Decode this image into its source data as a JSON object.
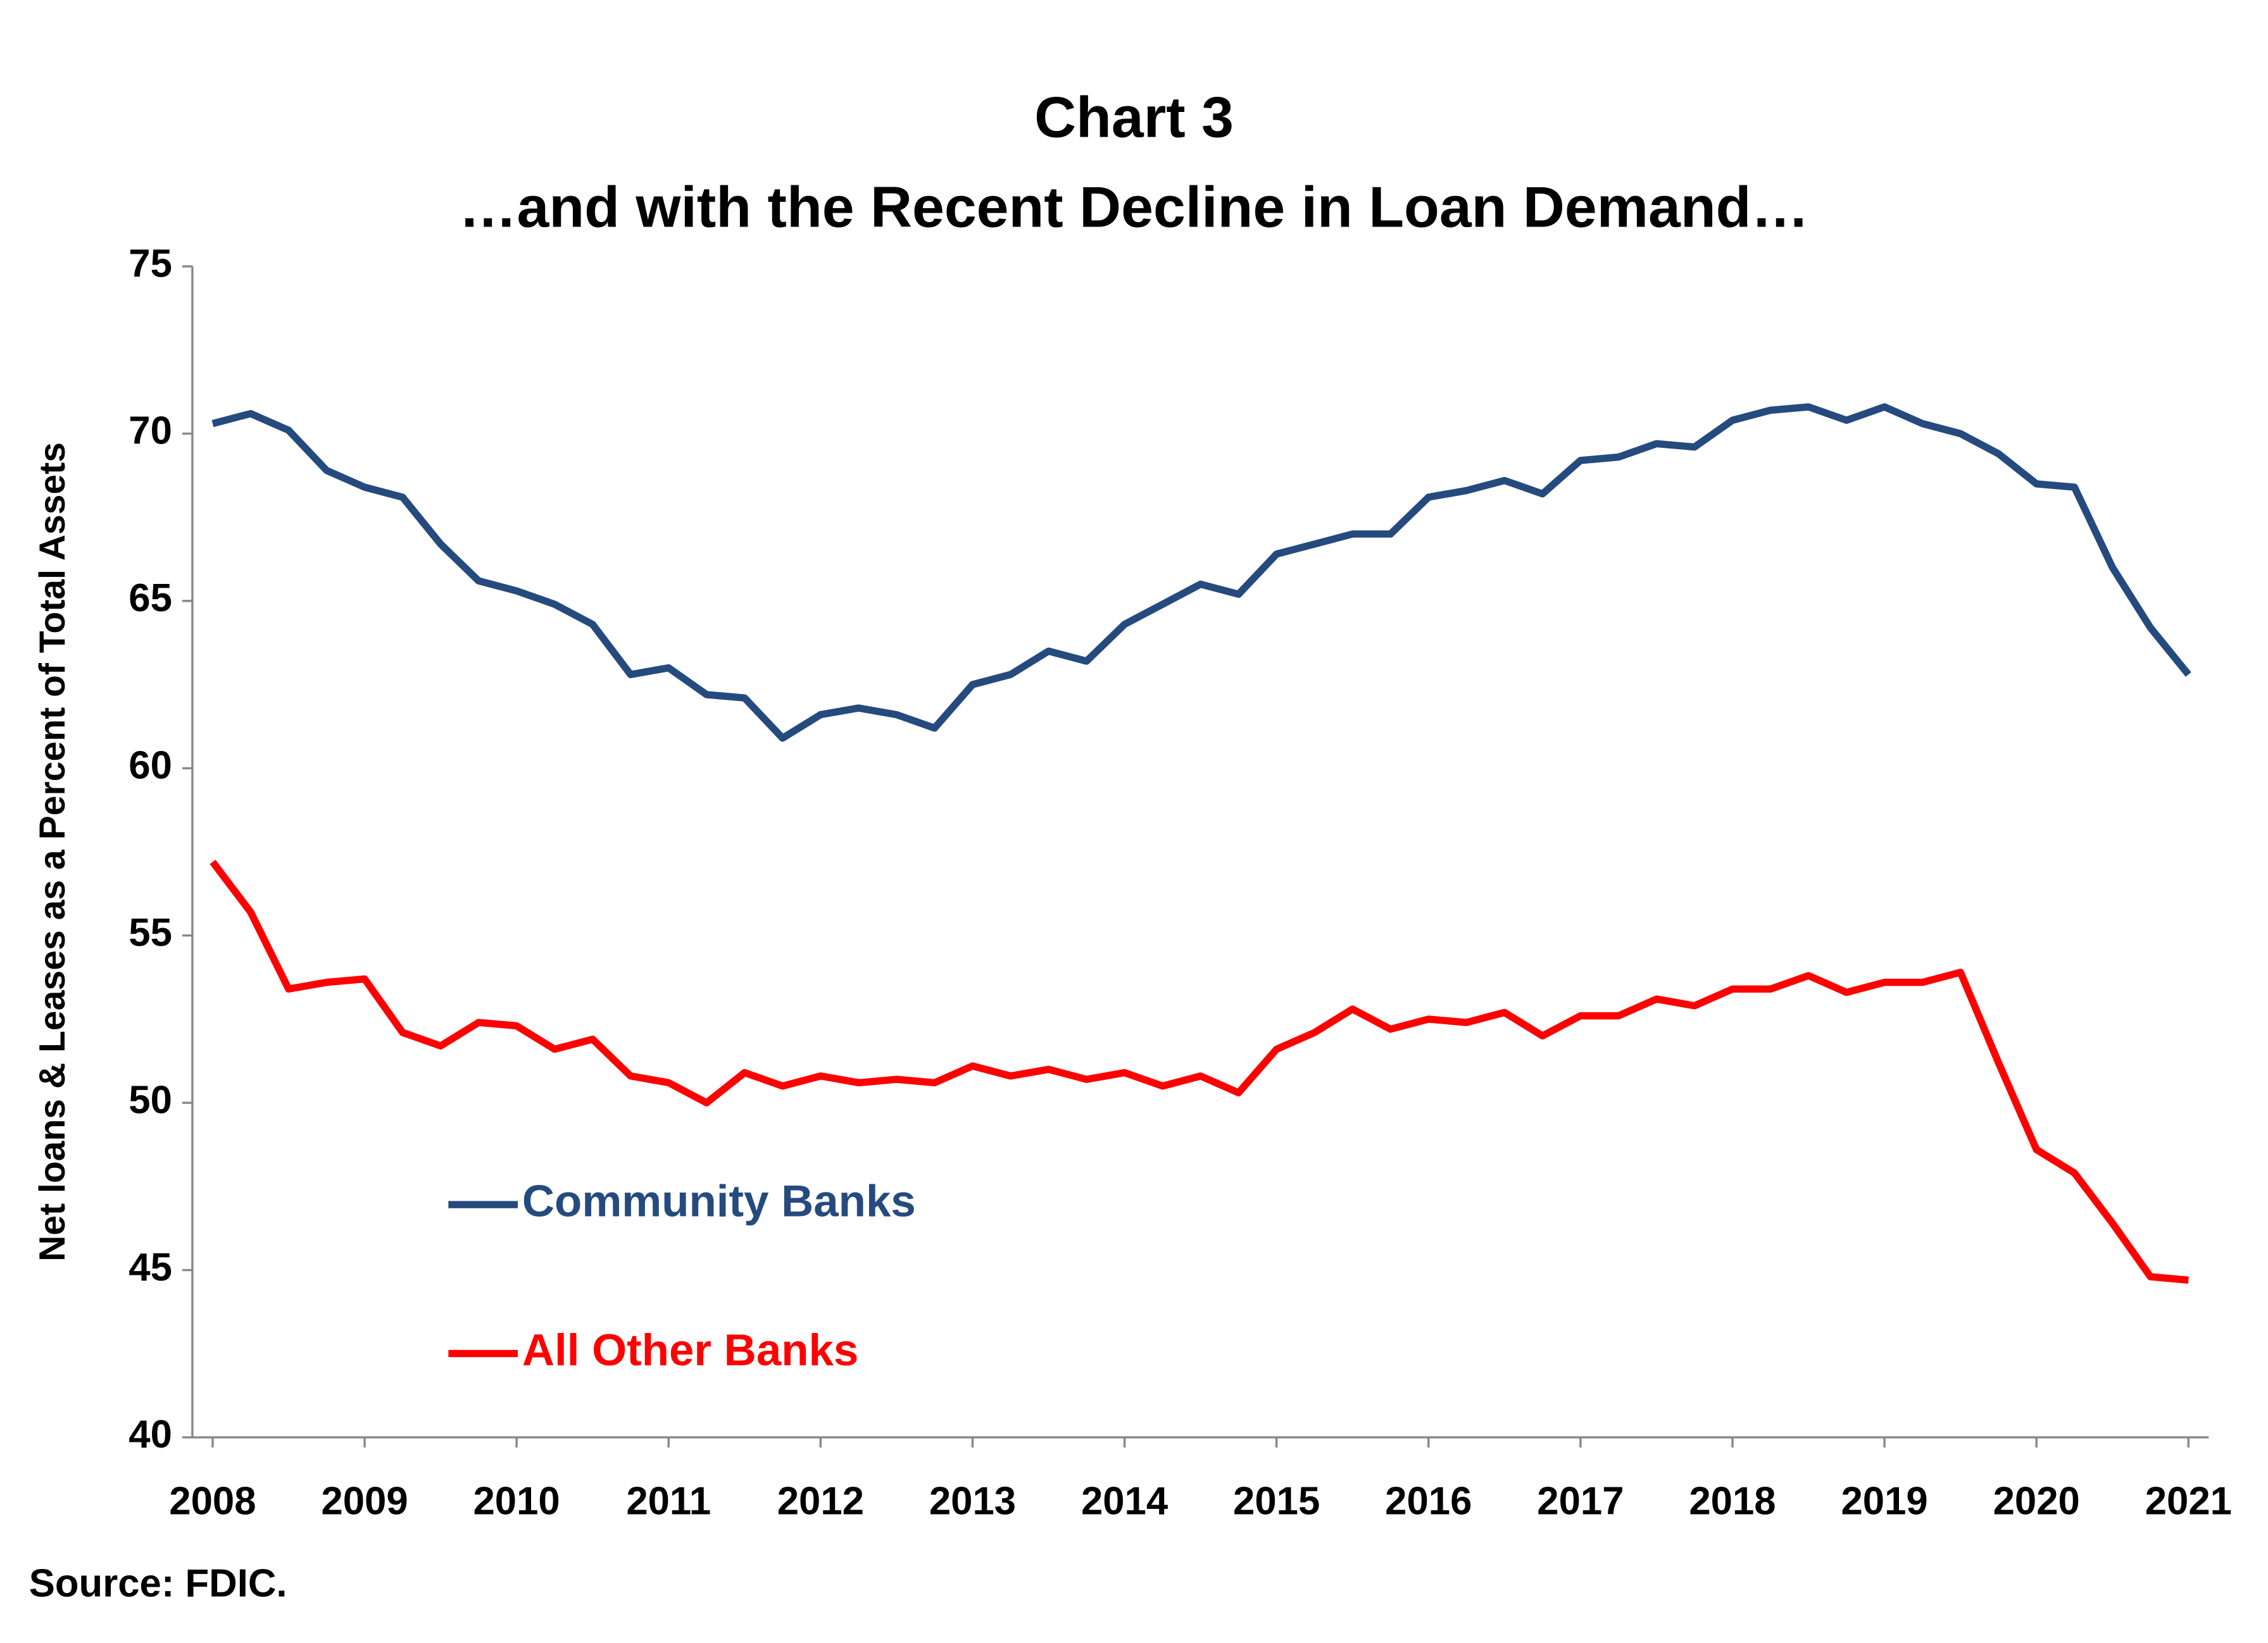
{
  "chart_data": {
    "type": "line",
    "title": "Chart 3",
    "subtitle": "…and with the Recent Decline in Loan Demand…",
    "y_label": "Net loans & Leases as a Percent of Total Assets",
    "source": "Source: FDIC.",
    "categories": [
      "2008",
      null,
      null,
      null,
      "2009",
      null,
      null,
      null,
      "2010",
      null,
      null,
      null,
      "2011",
      null,
      null,
      null,
      "2012",
      null,
      null,
      null,
      "2013",
      null,
      null,
      null,
      "2014",
      null,
      null,
      null,
      "2015",
      null,
      null,
      null,
      "2016",
      null,
      null,
      null,
      "2017",
      null,
      null,
      null,
      "2018",
      null,
      null,
      null,
      "2019",
      null,
      null,
      null,
      "2020",
      null,
      null,
      null,
      "2021"
    ],
    "series": [
      {
        "name": "Community Banks",
        "color": "#254a7e",
        "values": [
          70.3,
          70.6,
          70.1,
          68.9,
          68.4,
          68.1,
          66.7,
          65.6,
          65.3,
          64.9,
          64.3,
          62.8,
          63.0,
          62.2,
          62.1,
          60.9,
          61.6,
          61.8,
          61.6,
          61.2,
          62.5,
          62.8,
          63.5,
          63.2,
          64.3,
          64.9,
          65.5,
          65.2,
          66.4,
          66.7,
          67.0,
          67.0,
          68.1,
          68.3,
          68.6,
          68.2,
          69.2,
          69.3,
          69.7,
          69.6,
          70.4,
          70.7,
          70.8,
          70.4,
          70.8,
          70.3,
          70.0,
          69.4,
          68.5,
          68.4,
          66.0,
          64.2,
          62.8
        ]
      },
      {
        "name": "All Other Banks",
        "color": "#ff0000",
        "values": [
          57.2,
          55.7,
          53.4,
          53.6,
          53.7,
          52.1,
          51.7,
          52.4,
          52.3,
          51.6,
          51.9,
          50.8,
          50.6,
          50.0,
          50.9,
          50.5,
          50.8,
          50.6,
          50.7,
          50.6,
          51.1,
          50.8,
          51.0,
          50.7,
          50.9,
          50.5,
          50.8,
          50.3,
          51.6,
          52.1,
          52.8,
          52.2,
          52.5,
          52.4,
          52.7,
          52.0,
          52.6,
          52.6,
          53.1,
          52.9,
          53.4,
          53.4,
          53.8,
          53.3,
          53.6,
          53.6,
          53.9,
          51.2,
          48.6,
          47.9,
          46.4,
          44.8,
          44.7
        ]
      }
    ],
    "ylim": [
      40,
      75
    ],
    "yticks": [
      40,
      45,
      50,
      55,
      60,
      65,
      70,
      75
    ],
    "grid": false,
    "legend": "lower-left"
  }
}
